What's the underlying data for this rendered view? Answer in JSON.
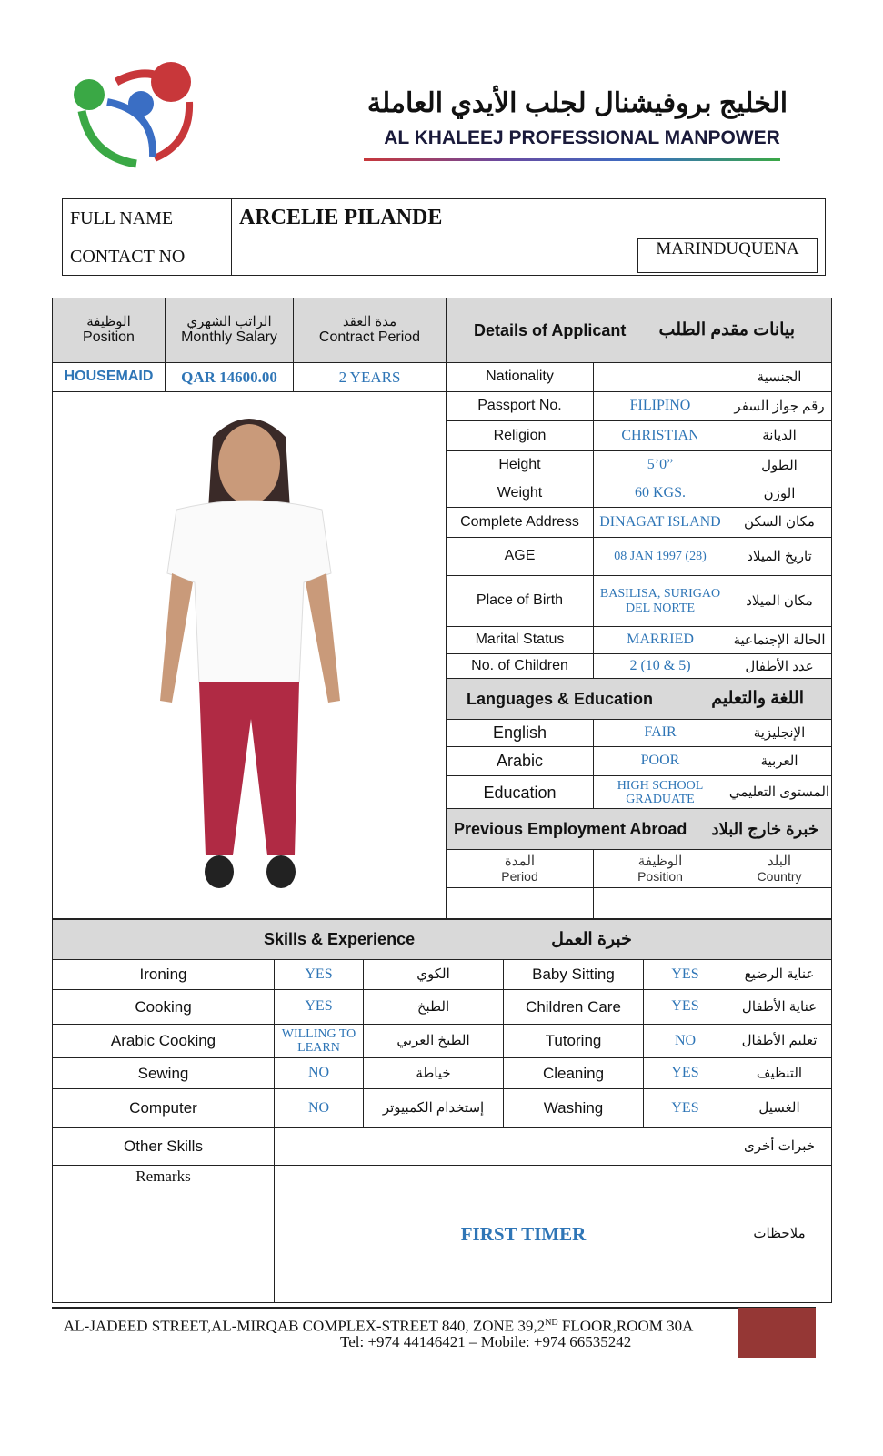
{
  "company": {
    "name_ar": "الخليج بروفيشنال لجلب الأيدي العاملة",
    "name_en": "AL KHALEEJ PROFESSIONAL MANPOWER"
  },
  "identity": {
    "full_name_label": "FULL NAME",
    "full_name": "ARCELIE PILANDE",
    "contact_label": "CONTACT NO",
    "contact": "",
    "code": "MARINDUQUENA"
  },
  "job": {
    "position_ar": "الوظيفة",
    "position_label": "Position",
    "position": "HOUSEMAID",
    "salary_ar": "الراتب الشهري",
    "salary_label": "Monthly Salary",
    "salary": "QAR 14600.00",
    "contract_ar": "مدة العقد",
    "contract_label": "Contract Period",
    "contract": "2 YEARS"
  },
  "details": {
    "title": "Details of Applicant",
    "title_ar": "بيانات مقدم الطلب",
    "rows": [
      {
        "label": "Nationality",
        "value": "",
        "ar": "الجنسية"
      },
      {
        "label": "Passport No.",
        "value": "FILIPINO",
        "ar": "رقم جواز السفر"
      },
      {
        "label": "Religion",
        "value": "CHRISTIAN",
        "ar": "الديانة"
      },
      {
        "label": "Height",
        "value": "5’0”",
        "ar": "الطول"
      },
      {
        "label": "Weight",
        "value": "60 KGS.",
        "ar": "الوزن"
      },
      {
        "label": "Complete Address",
        "value": "DINAGAT ISLAND",
        "ar": "مكان السكن"
      },
      {
        "label": "AGE",
        "value": "08 JAN 1997 (28)",
        "ar": "تاريخ الميلاد"
      },
      {
        "label": "Place of Birth",
        "value": "BASILISA, SURIGAO DEL NORTE",
        "ar": "مكان الميلاد"
      },
      {
        "label": "Marital Status",
        "value": "MARRIED",
        "ar": "الحالة الإجتماعية"
      },
      {
        "label": "No. of Children",
        "value": "2 (10 & 5)",
        "ar": "عدد الأطفال"
      }
    ]
  },
  "languages": {
    "title": "Languages & Education",
    "title_ar": "اللغة والتعليم",
    "rows": [
      {
        "label": "English",
        "value": "FAIR",
        "ar": "الإنجليزية"
      },
      {
        "label": "Arabic",
        "value": "POOR",
        "ar": "العربية"
      },
      {
        "label": "Education",
        "value": "HIGH SCHOOL GRADUATE",
        "ar": "المستوى التعليمي"
      }
    ]
  },
  "employment": {
    "title": "Previous Employment Abroad",
    "title_ar": "خبرة خارج البلاد",
    "period_ar": "المدة",
    "period": "Period",
    "position_ar": "الوظيفة",
    "position": "Position",
    "country_ar": "البلد",
    "country": "Country"
  },
  "skills": {
    "title": "Skills & Experience",
    "title_ar": "خبرة العمل",
    "rows": [
      {
        "l": "Ironing",
        "lv": "YES",
        "la": "الكوي",
        "r": "Baby Sitting",
        "rv": "YES",
        "ra": "عناية الرضيع"
      },
      {
        "l": "Cooking",
        "lv": "YES",
        "la": "الطبخ",
        "r": "Children Care",
        "rv": "YES",
        "ra": "عناية الأطفال"
      },
      {
        "l": "Arabic Cooking",
        "lv": "WILLING TO LEARN",
        "la": "الطبخ العربي",
        "r": "Tutoring",
        "rv": "NO",
        "ra": "تعليم الأطفال"
      },
      {
        "l": "Sewing",
        "lv": "NO",
        "la": "خياطة",
        "r": "Cleaning",
        "rv": "YES",
        "ra": "التنظيف"
      },
      {
        "l": "Computer",
        "lv": "NO",
        "la": "إستخدام الكمبيوتر",
        "r": "Washing",
        "rv": "YES",
        "ra": "الغسيل"
      }
    ],
    "other_label": "Other Skills",
    "other_ar": "خبرات أخرى",
    "other": "",
    "remarks_label": "Remarks",
    "remarks": "FIRST TIMER",
    "remarks_ar": "ملاحظات"
  },
  "footer": {
    "address": "AL-JADEED STREET,AL-MIRQAB COMPLEX-STREET 840, ZONE 39,2",
    "sup": "ND",
    "address2": " FLOOR,ROOM 30A",
    "phone": "Tel: +974 44146421 – Mobile: +974 66535242",
    "accent": "#953735"
  }
}
